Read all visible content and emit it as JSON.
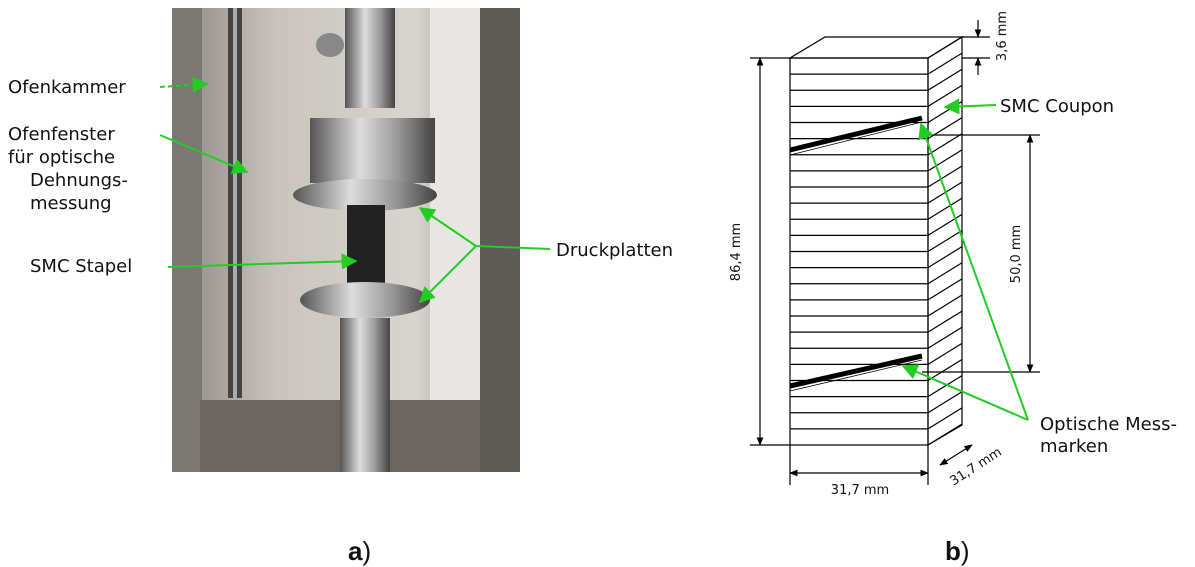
{
  "panel_a": {
    "labels": {
      "ofenkammer": "Ofenkammer",
      "ofenfenster": [
        "Ofenfenster",
        "für optische",
        "Dehnungs-",
        "messung"
      ],
      "smc_stapel": "SMC Stapel",
      "druckplatten": "Druckplatten"
    },
    "caption": {
      "letter": "a",
      "paren": ")"
    }
  },
  "panel_b": {
    "labels": {
      "layer": "3,6 mm",
      "coupon": "SMC Coupon",
      "height": "86,4 mm",
      "gauge": "50,0 mm",
      "marks": [
        "Optische Mess-",
        "marken"
      ],
      "width": "31,7 mm",
      "depth": "31,7 mm"
    },
    "caption": {
      "letter": "b",
      "paren": ")"
    }
  }
}
